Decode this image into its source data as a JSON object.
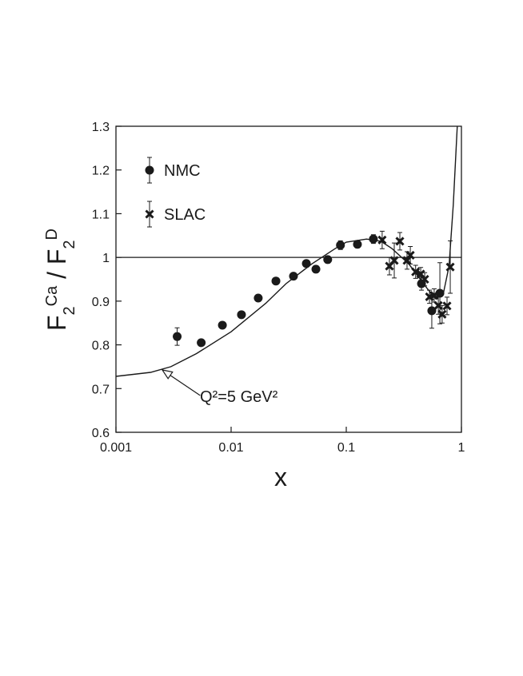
{
  "chart_data": {
    "type": "scatter",
    "xlabel": "x",
    "ylabel": [
      "F",
      "2",
      "Ca",
      " / F",
      "2",
      "D"
    ],
    "ylabel_scripts": [
      "base",
      "sub",
      "super",
      "base",
      "sub",
      "super"
    ],
    "xscale": "log",
    "xlim": [
      0.001,
      1
    ],
    "xticks": [
      0.001,
      0.01,
      0.1,
      1
    ],
    "ylim": [
      0.6,
      1.3
    ],
    "yticks": [
      0.6,
      0.7,
      0.8,
      0.9,
      1,
      1.1,
      1.2,
      1.3
    ],
    "reference_line": 1,
    "series": [
      {
        "name": "NMC",
        "marker": "circle",
        "color": "#1a1a1a",
        "x": [
          0.0034,
          0.0055,
          0.0084,
          0.0123,
          0.0172,
          0.0245,
          0.0348,
          0.045,
          0.0545,
          0.069,
          0.089,
          0.125,
          0.172,
          0.45,
          0.553,
          0.65
        ],
        "values": [
          0.819,
          0.805,
          0.845,
          0.869,
          0.907,
          0.946,
          0.957,
          0.986,
          0.973,
          0.995,
          1.028,
          1.03,
          1.042,
          0.94,
          0.878,
          0.918
        ],
        "errors": [
          0.02,
          0.006,
          0.006,
          0.006,
          0.006,
          0.006,
          0.006,
          0.006,
          0.008,
          0.008,
          0.01,
          0.008,
          0.01,
          0.015,
          0.04,
          0.07
        ]
      },
      {
        "name": "SLAC",
        "marker": "x",
        "color": "#1a1a1a",
        "x": [
          0.205,
          0.237,
          0.261,
          0.292,
          0.337,
          0.36,
          0.4,
          0.443,
          0.48,
          0.528,
          0.58,
          0.63,
          0.68,
          0.75,
          0.8
        ],
        "values": [
          1.04,
          0.98,
          0.993,
          1.037,
          0.993,
          1.005,
          0.967,
          0.962,
          0.95,
          0.91,
          0.913,
          0.89,
          0.87,
          0.889,
          0.978
        ],
        "errors": [
          0.02,
          0.02,
          0.04,
          0.02,
          0.02,
          0.02,
          0.015,
          0.015,
          0.015,
          0.015,
          0.015,
          0.02,
          0.02,
          0.02,
          0.06
        ]
      }
    ],
    "curve": {
      "x": [
        0.001,
        0.002,
        0.003,
        0.005,
        0.01,
        0.02,
        0.03,
        0.05,
        0.08,
        0.1,
        0.15,
        0.2,
        0.25,
        0.35,
        0.5,
        0.6,
        0.7,
        0.78,
        0.85,
        0.92
      ],
      "values": [
        0.728,
        0.737,
        0.75,
        0.78,
        0.83,
        0.895,
        0.94,
        0.985,
        1.02,
        1.035,
        1.042,
        1.037,
        1.02,
        0.985,
        0.93,
        0.905,
        0.92,
        0.98,
        1.12,
        1.3
      ]
    },
    "annotation": "Q²=5 GeV²"
  }
}
